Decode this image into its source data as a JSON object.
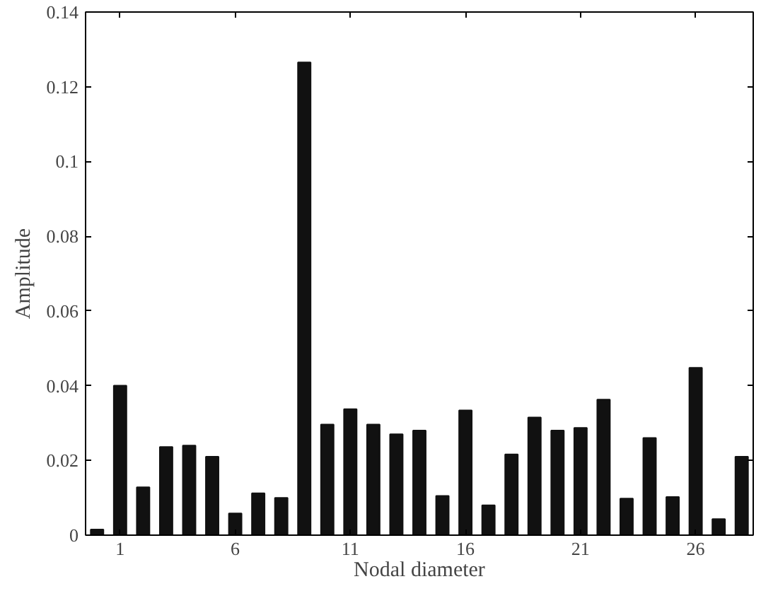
{
  "chart_data": {
    "type": "bar",
    "xlabel": "Nodal diameter",
    "ylabel": "Amplitude",
    "x": [
      0,
      1,
      2,
      3,
      4,
      5,
      6,
      7,
      8,
      9,
      10,
      11,
      12,
      13,
      14,
      15,
      16,
      17,
      18,
      19,
      20,
      21,
      22,
      23,
      24,
      25,
      26,
      27,
      28
    ],
    "values": [
      0.0015,
      0.04,
      0.0128,
      0.0236,
      0.024,
      0.021,
      0.0058,
      0.0112,
      0.01,
      0.1265,
      0.0296,
      0.0337,
      0.0296,
      0.027,
      0.028,
      0.0105,
      0.0334,
      0.008,
      0.0216,
      0.0315,
      0.028,
      0.0287,
      0.0363,
      0.0098,
      0.026,
      0.0102,
      0.0448,
      0.0043,
      0.021
    ],
    "color": "#111111",
    "xlim": [
      -0.5,
      28.5
    ],
    "xticks": [
      1,
      6,
      11,
      16,
      21,
      26
    ],
    "ylim": [
      0,
      0.14
    ],
    "yticks": [
      0,
      {
        "value": 0.02,
        "label": "0.02"
      },
      {
        "value": 0.04,
        "label": "0.04"
      },
      {
        "value": 0.06,
        "label": "0.06"
      },
      {
        "value": 0.08,
        "label": "0.08"
      },
      {
        "value": 0.1,
        "label": "0.1"
      },
      {
        "value": 0.12,
        "label": "0.12"
      },
      {
        "value": 0.14,
        "label": "0.14"
      }
    ],
    "grid": false
  }
}
